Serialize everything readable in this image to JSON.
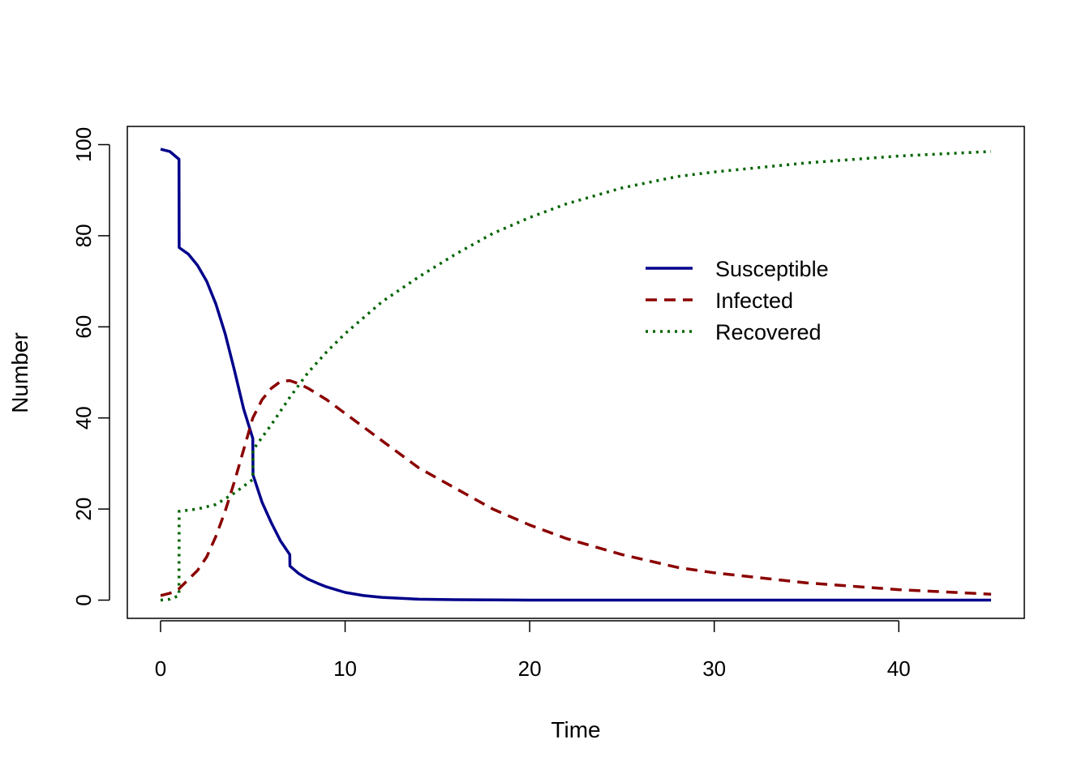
{
  "chart_data": {
    "type": "line",
    "xlabel": "Time",
    "ylabel": "Number",
    "xlim": [
      -1.8,
      46.8
    ],
    "ylim": [
      -4,
      104
    ],
    "xticks": [
      0,
      10,
      20,
      30,
      40
    ],
    "yticks": [
      0,
      20,
      40,
      60,
      80,
      100
    ],
    "legend_position": "top-right-inner",
    "grid": false,
    "series": [
      {
        "name": "Susceptible",
        "color": "#00008B",
        "dash": "solid",
        "x": [
          0,
          0.5,
          1.0,
          1.01,
          1.5,
          2.0,
          2.5,
          3.0,
          3.5,
          4.0,
          4.5,
          5.0,
          5.01,
          5.5,
          6.0,
          6.5,
          7.0,
          7.01,
          7.5,
          8.0,
          8.5,
          9.0,
          10.0,
          11.0,
          12.0,
          14.0,
          16.0,
          20.0,
          30.0,
          45.0
        ],
        "y": [
          99.0,
          98.5,
          96.8,
          77.4,
          76.0,
          73.5,
          70.0,
          65.0,
          58.5,
          50.5,
          42.0,
          35.5,
          27.5,
          21.5,
          17.0,
          13.0,
          10.0,
          7.5,
          5.8,
          4.6,
          3.7,
          2.9,
          1.7,
          1.0,
          0.6,
          0.2,
          0.1,
          0.0,
          0.0,
          0.0
        ]
      },
      {
        "name": "Infected",
        "color": "#8B0000",
        "dash": "dashed",
        "x": [
          0,
          0.5,
          1.0,
          1.5,
          2.0,
          2.5,
          3.0,
          3.5,
          4.0,
          4.5,
          5.0,
          5.5,
          6.0,
          6.5,
          7.0,
          7.5,
          8.0,
          9.0,
          10.0,
          12.0,
          14.0,
          16.0,
          18.0,
          20.0,
          22.0,
          25.0,
          28.0,
          30.0,
          35.0,
          40.0,
          45.0
        ],
        "y": [
          1.0,
          1.5,
          2.5,
          4.5,
          6.5,
          9.5,
          14.0,
          19.5,
          26.0,
          33.0,
          40.0,
          44.0,
          46.5,
          48.0,
          48.2,
          47.5,
          46.5,
          44.0,
          41.0,
          35.0,
          29.0,
          24.5,
          20.0,
          16.5,
          13.5,
          10.0,
          7.2,
          6.0,
          3.8,
          2.3,
          1.3
        ]
      },
      {
        "name": "Recovered",
        "color": "#006400",
        "dash": "dotted",
        "x": [
          0,
          0.5,
          1.0,
          1.01,
          2.0,
          3.0,
          4.0,
          5.0,
          5.01,
          6.0,
          7.0,
          8.0,
          9.0,
          10.0,
          12.0,
          14.0,
          16.0,
          18.0,
          20.0,
          22.0,
          25.0,
          28.0,
          30.0,
          35.0,
          40.0,
          45.0
        ],
        "y": [
          0.0,
          0.2,
          1.0,
          19.5,
          20.0,
          21.0,
          23.5,
          26.5,
          33.0,
          38.5,
          44.5,
          50.0,
          54.5,
          58.5,
          65.5,
          71.0,
          76.0,
          80.5,
          84.0,
          87.0,
          90.5,
          93.0,
          94.0,
          96.0,
          97.5,
          98.5
        ]
      }
    ]
  }
}
